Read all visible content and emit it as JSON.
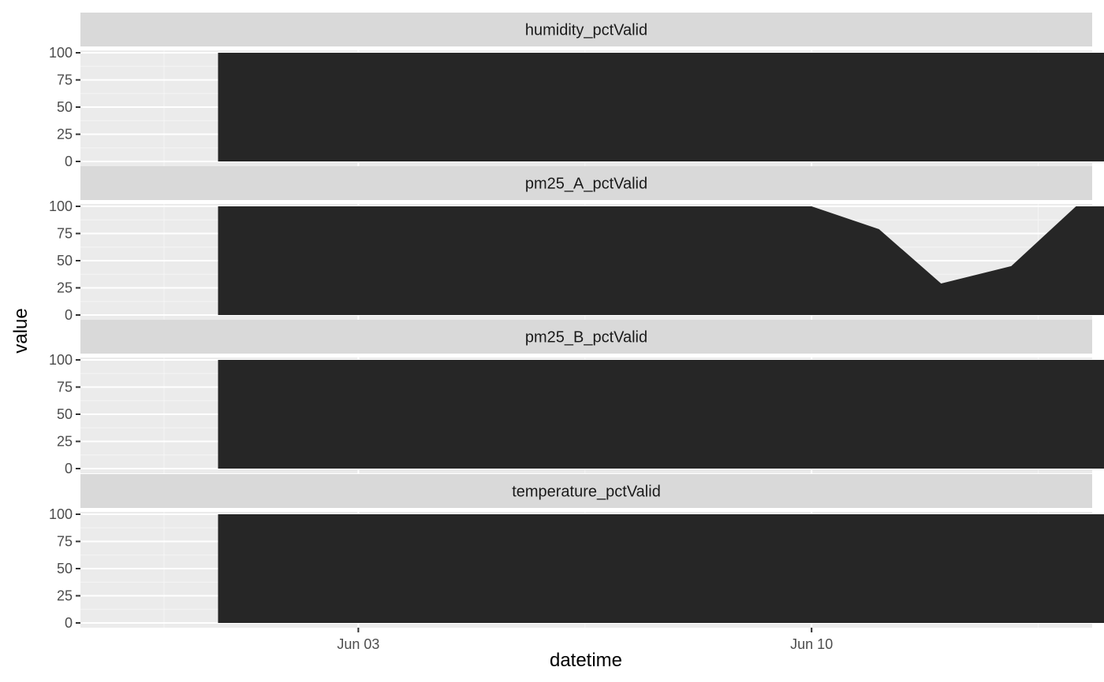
{
  "chart_data": {
    "type": "area",
    "xlabel": "datetime",
    "ylabel": "value",
    "x_range": [
      "2019-05-29T17:00",
      "2019-06-14T08:00"
    ],
    "ylim": [
      0,
      100
    ],
    "y_ticks": [
      0,
      25,
      50,
      75,
      100
    ],
    "x_ticks": [
      {
        "value": "2019-06-03",
        "label": "Jun 03"
      },
      {
        "value": "2019-06-10",
        "label": "Jun 10"
      }
    ],
    "x_minor_breaks": [
      "2019-05-31",
      "2019-06-06T12:00",
      "2019-06-13T12:00"
    ],
    "grid": true,
    "fill_color": "#262626",
    "panel_background": "#ebebeb",
    "strip_background": "#d9d9d9",
    "facets": [
      {
        "name": "humidity_pctValid",
        "x": [
          "2019-05-31T20:00",
          "2019-06-16T16:00"
        ],
        "values": [
          100,
          100
        ]
      },
      {
        "name": "pm25_A_pctValid",
        "x": [
          "2019-05-31T20:00",
          "2019-06-10T00:00",
          "2019-06-11T01:00",
          "2019-06-12T00:00",
          "2019-06-13T02:00",
          "2019-06-14T02:00",
          "2019-06-16T16:00"
        ],
        "values": [
          100,
          100,
          79,
          29,
          45,
          100,
          100
        ]
      },
      {
        "name": "pm25_B_pctValid",
        "x": [
          "2019-05-31T20:00",
          "2019-06-16T16:00"
        ],
        "values": [
          100,
          100
        ]
      },
      {
        "name": "temperature_pctValid",
        "x": [
          "2019-05-31T20:00",
          "2019-06-16T16:00"
        ],
        "values": [
          100,
          100
        ]
      }
    ]
  }
}
